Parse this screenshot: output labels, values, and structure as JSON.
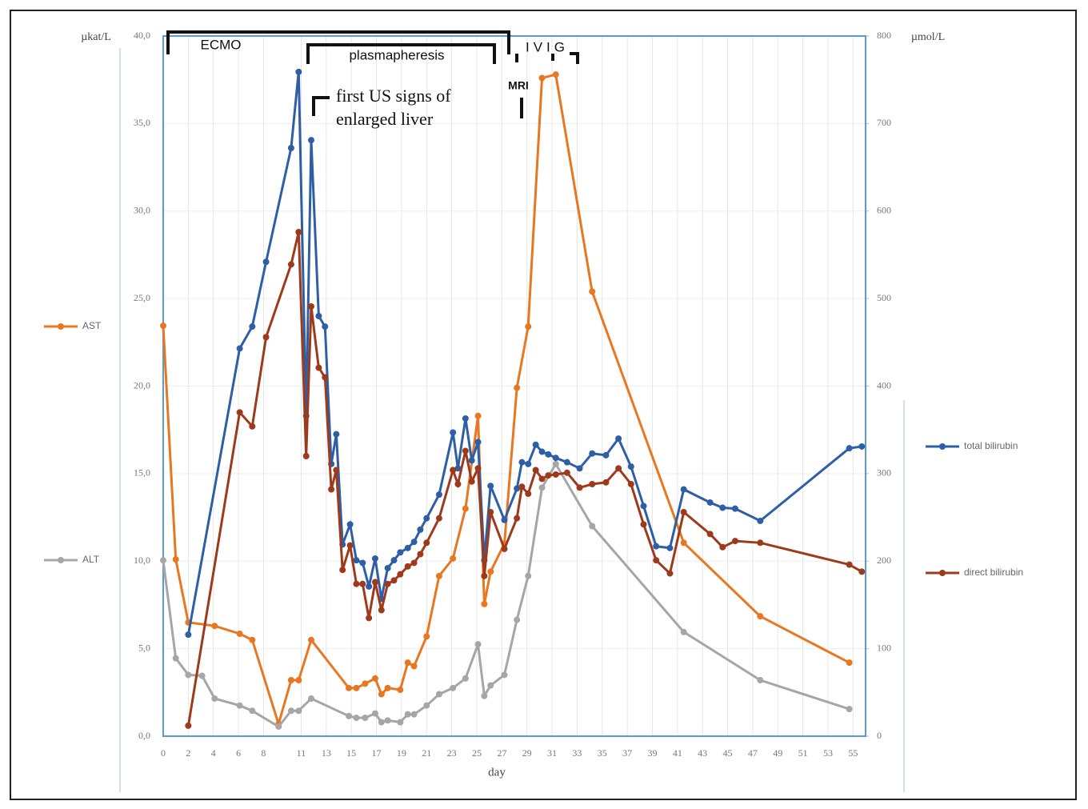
{
  "chart_data": {
    "type": "line",
    "xlabel": "day",
    "ylabel": "µkat/L",
    "y2label": "µmol/L",
    "xlim": [
      0,
      56
    ],
    "xticks": [
      0,
      2,
      4,
      6,
      8,
      11,
      13,
      15,
      17,
      19,
      21,
      23,
      25,
      27,
      29,
      31,
      33,
      35,
      37,
      39,
      41,
      43,
      45,
      47,
      49,
      51,
      53,
      55
    ],
    "ylim": [
      0,
      40
    ],
    "yticks": [
      {
        "value": 0,
        "label": "0,0"
      },
      {
        "value": 5,
        "label": "5,0"
      },
      {
        "value": 10,
        "label": "10,0"
      },
      {
        "value": 15,
        "label": "15,0"
      },
      {
        "value": 20,
        "label": "20,0"
      },
      {
        "value": 25,
        "label": "25,0"
      },
      {
        "value": 30,
        "label": "30,0"
      },
      {
        "value": 35,
        "label": "35,0"
      },
      {
        "value": 40,
        "label": "40,0"
      }
    ],
    "y2lim": [
      0,
      800
    ],
    "y2ticks": [
      0,
      100,
      200,
      300,
      400,
      500,
      600,
      700,
      800
    ],
    "grid": true,
    "annotations": [
      "ECMO",
      "plasmapheresis",
      "first US signs of",
      "enlarged liver",
      "IVIG",
      "MRI"
    ],
    "series": [
      {
        "name": "AST",
        "color": "#e87722",
        "axis": "y",
        "x": [
          0,
          1,
          2,
          4.1,
          6.1,
          7.1,
          9.2,
          10.2,
          10.8,
          11.8,
          14.8,
          15.4,
          16.1,
          16.9,
          17.4,
          17.9,
          18.9,
          19.5,
          20,
          21,
          22,
          23.1,
          24.1,
          25.1,
          25.6,
          26.1,
          27.2,
          28.2,
          29.1,
          30.2,
          31.3,
          34.2,
          41.5,
          47.6,
          54.7
        ],
        "values": [
          23.45,
          10.1,
          6.5,
          6.3,
          5.85,
          5.5,
          0.7,
          3.2,
          3.2,
          5.5,
          2.75,
          2.75,
          3.0,
          3.3,
          2.4,
          2.75,
          2.65,
          4.2,
          4.0,
          5.7,
          9.15,
          10.15,
          13.0,
          18.3,
          7.55,
          9.4,
          11.0,
          19.9,
          23.4,
          37.6,
          37.8,
          25.4,
          11.05,
          6.85,
          4.2
        ]
      },
      {
        "name": "ALT",
        "color": "#a6a6a6",
        "axis": "y",
        "x": [
          0,
          1,
          2,
          3.1,
          4.1,
          6.1,
          7.1,
          9.2,
          10.2,
          10.8,
          11.8,
          14.8,
          15.4,
          16.1,
          16.9,
          17.4,
          17.9,
          18.9,
          19.5,
          20,
          21,
          22,
          23.1,
          24.1,
          25.1,
          25.6,
          26.1,
          27.2,
          28.2,
          29.1,
          30.2,
          31.3,
          34.2,
          41.5,
          47.6,
          54.7
        ],
        "values": [
          10.05,
          4.45,
          3.5,
          3.45,
          2.15,
          1.75,
          1.45,
          0.55,
          1.45,
          1.45,
          2.15,
          1.15,
          1.05,
          1.05,
          1.3,
          0.8,
          0.9,
          0.8,
          1.25,
          1.25,
          1.75,
          2.4,
          2.75,
          3.3,
          5.25,
          2.3,
          2.9,
          3.5,
          6.65,
          9.15,
          14.2,
          15.55,
          12.0,
          5.95,
          3.2,
          1.55
        ]
      },
      {
        "name": "total bilirubin",
        "color": "#2e5fa6",
        "axis": "y2",
        "x": [
          2,
          6.1,
          7.1,
          8.2,
          10.2,
          10.8,
          11.4,
          11.8,
          12.4,
          12.9,
          13.4,
          13.8,
          14.3,
          14.9,
          15.4,
          15.9,
          16.4,
          16.9,
          17.4,
          17.9,
          18.4,
          18.9,
          19.5,
          20,
          20.5,
          21,
          22,
          23.1,
          23.5,
          24.1,
          24.6,
          25.1,
          25.6,
          26.1,
          27.2,
          28.2,
          28.6,
          29.1,
          29.7,
          30.2,
          30.7,
          31.3,
          32.2,
          33.2,
          34.2,
          35.3,
          36.3,
          37.3,
          38.3,
          39.3,
          40.4,
          41.5,
          43.6,
          44.6,
          45.6,
          47.6,
          54.7,
          55.7
        ],
        "values": [
          116,
          443,
          468,
          542,
          672,
          759,
          366,
          681,
          480,
          468,
          311,
          345,
          219,
          242,
          201,
          198,
          171,
          203,
          157,
          192,
          201,
          210,
          215,
          222,
          236,
          249,
          276,
          347,
          306,
          363,
          315,
          336,
          201,
          286,
          247,
          283,
          313,
          311,
          333,
          325,
          322,
          318,
          313,
          306,
          323,
          321,
          340,
          308,
          263,
          217,
          215,
          282,
          267,
          261,
          260,
          246,
          329,
          331
        ]
      },
      {
        "name": "direct bilirubin",
        "color": "#9e3a1c",
        "axis": "y2",
        "x": [
          2,
          6.1,
          7.1,
          8.2,
          10.2,
          10.8,
          11.4,
          11.8,
          12.4,
          12.9,
          13.4,
          13.8,
          14.3,
          14.9,
          15.4,
          15.9,
          16.4,
          16.9,
          17.4,
          17.9,
          18.4,
          18.9,
          19.5,
          20,
          20.5,
          21,
          22,
          23.1,
          23.5,
          24.1,
          24.6,
          25.1,
          25.6,
          26.1,
          27.2,
          28.2,
          28.6,
          29.1,
          29.7,
          30.2,
          30.7,
          31.3,
          32.2,
          33.2,
          34.2,
          35.3,
          36.3,
          37.3,
          38.3,
          39.3,
          40.4,
          41.5,
          43.6,
          44.6,
          45.6,
          47.6,
          54.7,
          55.7
        ],
        "values": [
          12,
          370,
          354,
          456,
          539,
          576,
          320,
          491,
          421,
          410,
          282,
          304,
          190,
          218,
          174,
          174,
          135,
          176,
          144,
          174,
          178,
          185,
          194,
          198,
          208,
          221,
          249,
          304,
          288,
          326,
          291,
          306,
          183,
          256,
          214,
          249,
          285,
          277,
          304,
          294,
          298,
          299,
          301,
          284,
          288,
          290,
          306,
          288,
          242,
          201,
          186,
          256,
          231,
          216,
          223,
          221,
          196,
          188
        ]
      }
    ]
  }
}
